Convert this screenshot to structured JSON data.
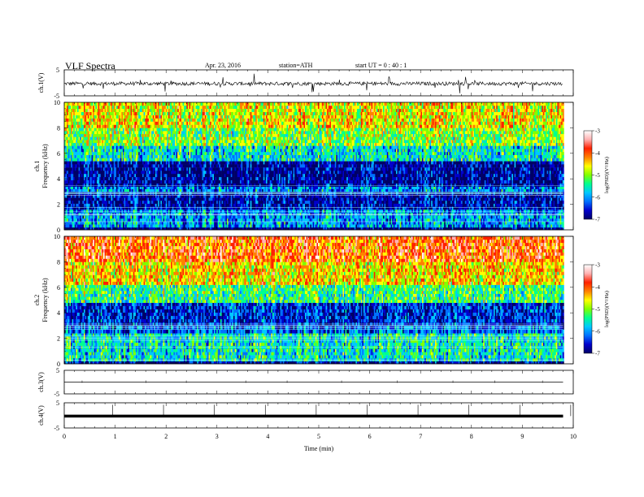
{
  "header": {
    "title": "VLF  Spectra",
    "date": "Apr. 23, 2016",
    "station": "station=ATH",
    "start": "start  UT  =   0 : 40 : 1"
  },
  "chart_data": [
    {
      "type": "line",
      "panel": "ch1-waveform",
      "ylabel": "ch.1(V)",
      "ylim": [
        -5,
        5
      ],
      "yticks": [
        "5",
        "-5"
      ],
      "x": [
        0,
        1,
        2,
        3,
        4,
        5,
        6,
        7,
        8,
        9,
        9.8
      ],
      "values": [
        -0.3,
        -0.2,
        -0.1,
        -0.2,
        -0.3,
        -0.2,
        -0.1,
        -0.2,
        -0.3,
        -0.2,
        -0.3
      ],
      "color": "#000000"
    },
    {
      "type": "heatmap",
      "panel": "ch1-spectrogram",
      "ylabel": "ch.1\nFrequency  (kHz)",
      "ylim": [
        0,
        10
      ],
      "yticks": [
        "0",
        "2",
        "4",
        "6",
        "8",
        "10"
      ],
      "colorbar": {
        "label": "log(PSD)(V²/Hz)",
        "range": [
          -7,
          -3
        ],
        "ticks": [
          "-3",
          "-4",
          "-5",
          "-6",
          "-7"
        ]
      },
      "bands": [
        {
          "from": 0,
          "to": 0.2,
          "level": -7
        },
        {
          "from": 0.2,
          "to": 1.6,
          "level": -6
        },
        {
          "from": 1.6,
          "to": 3.0,
          "level": -6.7
        },
        {
          "from": 3.0,
          "to": 3.4,
          "level": -6.1
        },
        {
          "from": 3.4,
          "to": 5.4,
          "level": -6.8
        },
        {
          "from": 5.4,
          "to": 6.6,
          "level": -5.6
        },
        {
          "from": 6.6,
          "to": 8.0,
          "level": -5.0
        },
        {
          "from": 8.0,
          "to": 10.0,
          "level": -4.6
        }
      ]
    },
    {
      "type": "heatmap",
      "panel": "ch2-spectrogram",
      "ylabel": "ch.2\nFrequency  (kHz)",
      "ylim": [
        0,
        10
      ],
      "yticks": [
        "0",
        "2",
        "4",
        "6",
        "8",
        "10"
      ],
      "colorbar": {
        "label": "log(PSD)(V²/Hz)",
        "range": [
          -7,
          -3
        ],
        "ticks": [
          "-3",
          "-4",
          "-5",
          "-6",
          "-7"
        ]
      },
      "bands": [
        {
          "from": 0,
          "to": 0.2,
          "level": -6.8
        },
        {
          "from": 0.2,
          "to": 2.4,
          "level": -5.6
        },
        {
          "from": 2.4,
          "to": 3.0,
          "level": -6.2
        },
        {
          "from": 3.0,
          "to": 4.8,
          "level": -6.5
        },
        {
          "from": 4.8,
          "to": 6.2,
          "level": -5.3
        },
        {
          "from": 6.2,
          "to": 8.0,
          "level": -4.5
        },
        {
          "from": 8.0,
          "to": 10.0,
          "level": -4.0
        }
      ]
    },
    {
      "type": "line",
      "panel": "ch3-waveform",
      "ylabel": "ch.3(V)",
      "ylim": [
        -5,
        5
      ],
      "yticks": [
        "5",
        "-5"
      ],
      "x": [
        0,
        9.8
      ],
      "values": [
        0,
        0
      ],
      "color": "#000000"
    },
    {
      "type": "line",
      "panel": "ch4-waveform",
      "ylabel": "ch.4(V)",
      "ylim": [
        -5,
        5
      ],
      "yticks": [
        "5",
        "-5"
      ],
      "x": [
        0,
        9.8
      ],
      "values": [
        -0.3,
        -0.3
      ],
      "color": "#000000"
    }
  ],
  "xaxis": {
    "label": "Time  (min)",
    "ticks": [
      "0",
      "1",
      "2",
      "3",
      "4",
      "5",
      "6",
      "7",
      "8",
      "9",
      "10"
    ],
    "range": [
      0,
      10
    ],
    "data_end": 9.8
  },
  "colors": {
    "scale": [
      "#000066",
      "#0000cc",
      "#0070ff",
      "#00c8ff",
      "#00ff90",
      "#80ff00",
      "#ffff00",
      "#ff8000",
      "#ff2000",
      "#ffb0b0",
      "#ffffff"
    ]
  }
}
